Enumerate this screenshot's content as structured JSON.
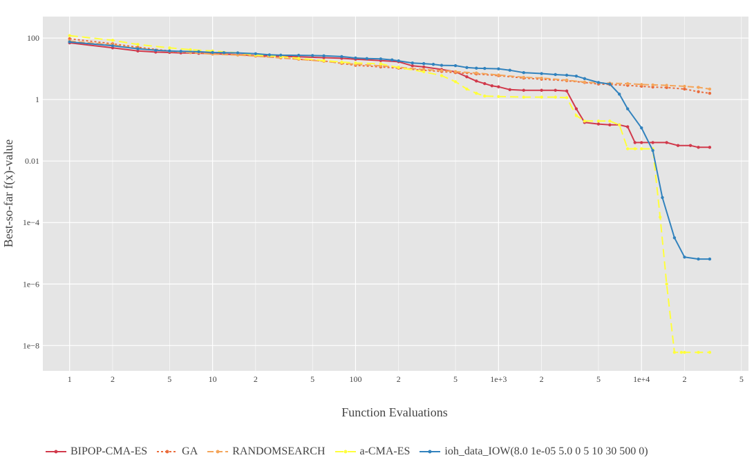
{
  "chart_data": {
    "type": "line",
    "xlabel": "Function Evaluations",
    "ylabel": "Best-so-far f(x)-value",
    "xscale": "log",
    "yscale": "log",
    "xlim": [
      0.65,
      56000
    ],
    "ylim": [
      1.5e-09,
      500
    ],
    "grid": true,
    "legend_position": "bottom",
    "x_ticks": [
      {
        "v": 1,
        "label": "1"
      },
      {
        "v": 2,
        "label": "2"
      },
      {
        "v": 5,
        "label": "5"
      },
      {
        "v": 10,
        "label": "10"
      },
      {
        "v": 20,
        "label": "2"
      },
      {
        "v": 50,
        "label": "5"
      },
      {
        "v": 100,
        "label": "100"
      },
      {
        "v": 200,
        "label": "2"
      },
      {
        "v": 500,
        "label": "5"
      },
      {
        "v": 1000,
        "label": "1e+3"
      },
      {
        "v": 2000,
        "label": "2"
      },
      {
        "v": 5000,
        "label": "5"
      },
      {
        "v": 10000,
        "label": "1e+4"
      },
      {
        "v": 20000,
        "label": "2"
      },
      {
        "v": 50000,
        "label": "5"
      }
    ],
    "y_ticks": [
      {
        "v": 100,
        "label": "100"
      },
      {
        "v": 1,
        "label": "1"
      },
      {
        "v": 0.01,
        "label": "0.01"
      },
      {
        "v": 0.0001,
        "label": "1e−4"
      },
      {
        "v": 1e-06,
        "label": "1e−6"
      },
      {
        "v": 1e-08,
        "label": "1e−8"
      }
    ],
    "series": [
      {
        "name": "BIPOP-CMA-ES",
        "color": "#d1394b",
        "dash": "solid",
        "markers": true,
        "x": [
          1,
          2,
          3,
          4,
          5,
          6,
          8,
          10,
          15,
          20,
          30,
          40,
          60,
          80,
          100,
          150,
          200,
          250,
          300,
          400,
          500,
          600,
          700,
          800,
          900,
          1000,
          1200,
          1500,
          2000,
          2500,
          3000,
          3500,
          4000,
          5000,
          6000,
          7000,
          8000,
          9000,
          10000,
          12000,
          15000,
          18000,
          22000,
          25000,
          30000
        ],
        "y": [
          70,
          48,
          38,
          35,
          34,
          33,
          32,
          31,
          29,
          27,
          25.5,
          24.5,
          23,
          22,
          20.5,
          18.5,
          17,
          12.5,
          11.5,
          9.5,
          8,
          5.5,
          4,
          3.3,
          2.8,
          2.6,
          2.1,
          2,
          2,
          2,
          1.9,
          0.5,
          0.18,
          0.16,
          0.15,
          0.15,
          0.13,
          0.04,
          0.04,
          0.04,
          0.04,
          0.032,
          0.032,
          0.028,
          0.028
        ]
      },
      {
        "name": "GA",
        "color": "#ea6c3c",
        "dash": "3,3",
        "markers": true,
        "x": [
          1,
          2,
          3,
          5,
          7,
          10,
          15,
          20,
          30,
          40,
          60,
          80,
          100,
          150,
          200,
          300,
          400,
          500,
          700,
          1000,
          1500,
          2000,
          3000,
          4000,
          5000,
          6000,
          8000,
          10000,
          12000,
          15000,
          20000,
          25000,
          30000
        ],
        "y": [
          95,
          65,
          50,
          38,
          34,
          31,
          29,
          26,
          23,
          20.5,
          18,
          15,
          13,
          11.5,
          10.5,
          9,
          8.2,
          7.5,
          6.8,
          6,
          5,
          4.6,
          4.1,
          3.6,
          3.2,
          3.1,
          2.9,
          2.7,
          2.55,
          2.45,
          2.2,
          1.8,
          1.6
        ]
      },
      {
        "name": "RANDOMSEARCH",
        "color": "#f4a55a",
        "dash": "9,4",
        "markers": true,
        "x": [
          1,
          2,
          3,
          5,
          7,
          10,
          15,
          20,
          30,
          40,
          60,
          80,
          100,
          150,
          200,
          300,
          400,
          500,
          700,
          1000,
          1500,
          2000,
          3000,
          4000,
          5000,
          6000,
          8000,
          10000,
          12000,
          15000,
          20000,
          25000,
          30000
        ],
        "y": [
          80,
          60,
          46,
          37,
          33.5,
          30,
          28,
          26,
          22.5,
          20.5,
          17.5,
          15.5,
          14,
          12.5,
          11.2,
          9.5,
          8.8,
          8.1,
          7.3,
          6.3,
          5.3,
          5.0,
          4.3,
          3.7,
          3.5,
          3.4,
          3.3,
          3.1,
          3.0,
          2.9,
          2.7,
          2.5,
          2.2
        ]
      },
      {
        "name": "a-CMA-ES",
        "color": "#ffff3a",
        "dash": "12,6",
        "markers": true,
        "x": [
          1,
          2,
          3,
          5,
          7,
          10,
          15,
          20,
          30,
          40,
          60,
          80,
          100,
          150,
          200,
          300,
          400,
          500,
          600,
          700,
          800,
          1000,
          1500,
          2000,
          2500,
          3000,
          3500,
          4000,
          5000,
          6000,
          7000,
          8000,
          9000,
          10000,
          12000,
          13500,
          15000,
          17000,
          19000,
          20000,
          25000,
          30000
        ],
        "y": [
          120,
          85,
          62,
          48,
          42,
          38,
          33,
          28,
          25,
          22,
          18.5,
          16.5,
          15.5,
          14.5,
          11,
          8,
          6,
          3.8,
          2.2,
          1.6,
          1.3,
          1.25,
          1.2,
          1.2,
          1.2,
          1.15,
          0.3,
          0.2,
          0.2,
          0.2,
          0.15,
          0.025,
          0.025,
          0.025,
          0.025,
          0.00015,
          1e-06,
          6e-09,
          6e-09,
          6e-09,
          6e-09,
          6e-09
        ]
      },
      {
        "name": "ioh_data_IOW(8.0 1e-05 5.0 0 5 10 30 500 0)",
        "color": "#3182bd",
        "dash": "solid",
        "markers": true,
        "x": [
          1,
          2,
          3,
          4,
          5,
          6,
          8,
          10,
          12,
          15,
          20,
          25,
          30,
          40,
          50,
          60,
          80,
          100,
          120,
          150,
          180,
          200,
          250,
          300,
          350,
          400,
          500,
          600,
          700,
          800,
          1000,
          1200,
          1500,
          2000,
          2500,
          3000,
          3500,
          4000,
          5000,
          6000,
          7000,
          8000,
          10000,
          12000,
          14000,
          17000,
          20000,
          25000,
          30000
        ],
        "y": [
          75,
          56,
          45,
          40,
          38,
          37,
          36,
          34,
          33.5,
          33,
          31,
          28.5,
          27.8,
          27.5,
          27,
          26.5,
          25,
          22.5,
          21.5,
          21,
          19.5,
          18.2,
          15.5,
          14.8,
          14,
          13,
          12.7,
          11,
          10.5,
          10.3,
          10,
          9,
          7.5,
          7,
          6.5,
          6.2,
          5.8,
          4.8,
          3.6,
          3.2,
          1.5,
          0.5,
          0.12,
          0.022,
          0.00065,
          3.2e-05,
          7.5e-06,
          6.5e-06,
          6.5e-06
        ]
      }
    ]
  }
}
